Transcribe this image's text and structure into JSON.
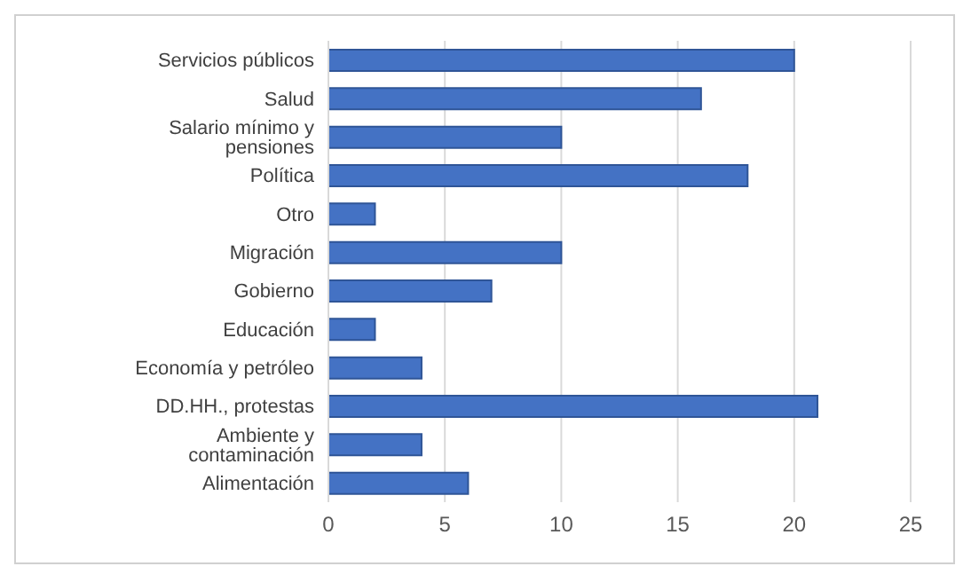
{
  "chart_data": {
    "type": "bar",
    "orientation": "horizontal",
    "categories": [
      "Servicios públicos",
      "Salud",
      "Salario mínimo y pensiones",
      "Política",
      "Otro",
      "Migración",
      "Gobierno",
      "Educación",
      "Economía y petróleo",
      "DD.HH., protestas",
      "Ambiente y contaminación",
      "Alimentación"
    ],
    "values": [
      20,
      16,
      10,
      18,
      2,
      10,
      7,
      2,
      4,
      21,
      4,
      6
    ],
    "color": "#4472c4",
    "xlim": [
      0,
      25
    ],
    "xticks": [
      0,
      5,
      10,
      15,
      20,
      25
    ],
    "grid": "x"
  }
}
